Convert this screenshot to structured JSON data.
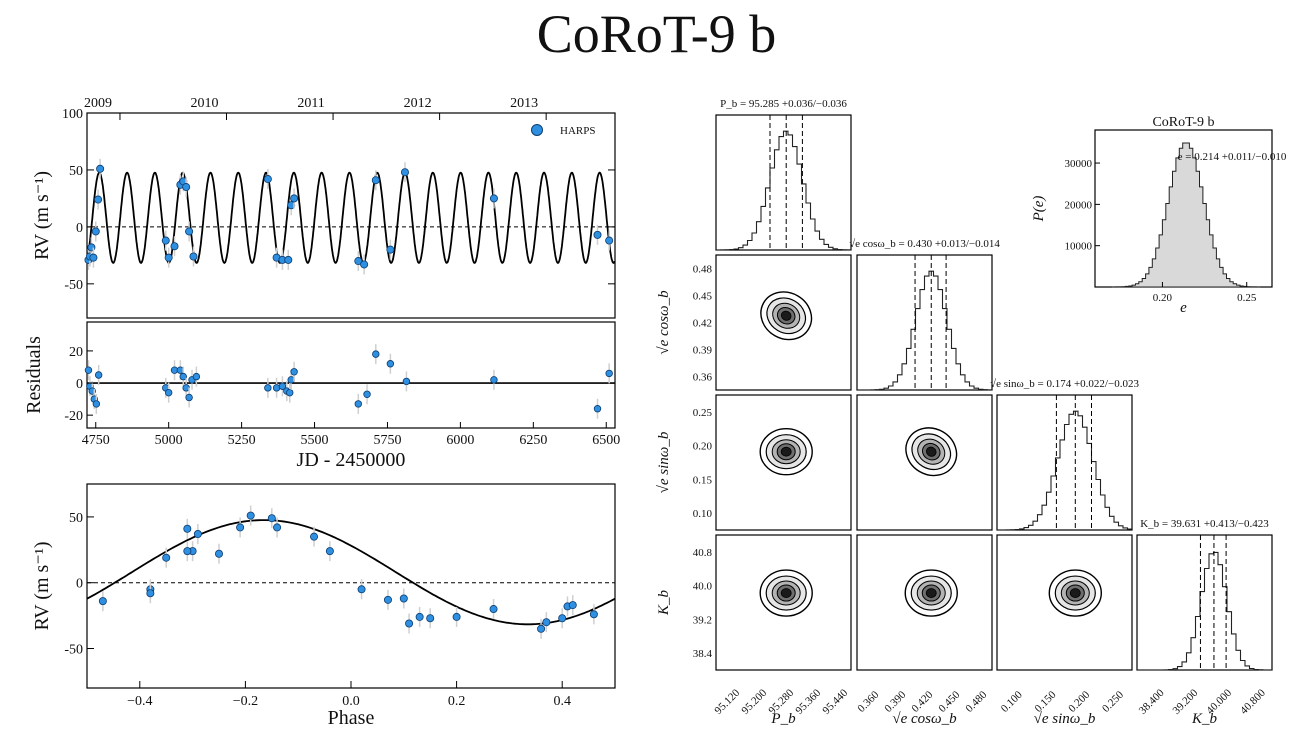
{
  "title": "CoRoT-9 b",
  "colors": {
    "points": "#2f8fe0",
    "model": "#000000",
    "hist_fill": "#d9d9d9"
  },
  "chart_data": [
    {
      "id": "rv_time",
      "type": "scatter",
      "xlabel": "JD - 2450000",
      "ylabel": "RV (m s⁻¹)",
      "ylim": [
        -80,
        100
      ],
      "xlim": [
        4720,
        6530
      ],
      "yticks": [
        "-50",
        "0",
        "50",
        "100"
      ],
      "top_axis_years": [
        "2009",
        "2010",
        "2011",
        "2012",
        "2013"
      ],
      "legend": "HARPS",
      "model": "sinusoid period 95.285, amplitude 39.6",
      "points": [
        [
          4725,
          -29
        ],
        [
          4730,
          -26
        ],
        [
          4735,
          -18
        ],
        [
          4742,
          -27
        ],
        [
          4750,
          -4
        ],
        [
          4758,
          24
        ],
        [
          4765,
          51
        ],
        [
          4990,
          -12
        ],
        [
          5000,
          -27
        ],
        [
          5020,
          -17
        ],
        [
          5040,
          37
        ],
        [
          5050,
          40
        ],
        [
          5060,
          35
        ],
        [
          5070,
          -4
        ],
        [
          5085,
          -26
        ],
        [
          5340,
          42
        ],
        [
          5370,
          -27
        ],
        [
          5390,
          -29
        ],
        [
          5410,
          -29
        ],
        [
          5420,
          19
        ],
        [
          5430,
          25
        ],
        [
          5650,
          -30
        ],
        [
          5670,
          -33
        ],
        [
          5710,
          41
        ],
        [
          5760,
          -20
        ],
        [
          5810,
          48
        ],
        [
          6115,
          25
        ],
        [
          6470,
          -7
        ],
        [
          6510,
          -12
        ]
      ]
    },
    {
      "id": "residuals",
      "type": "scatter",
      "ylabel": "Residuals",
      "ylim": [
        -28,
        38
      ],
      "xlim": [
        4720,
        6530
      ],
      "xticks": [
        "4750",
        "5000",
        "5250",
        "5500",
        "5750",
        "6000",
        "6250",
        "6500"
      ],
      "yticks": [
        "-20",
        "0",
        "20"
      ],
      "points": [
        [
          4725,
          8
        ],
        [
          4730,
          -2
        ],
        [
          4738,
          -5
        ],
        [
          4745,
          -10
        ],
        [
          4752,
          -13
        ],
        [
          4760,
          5
        ],
        [
          4990,
          -3
        ],
        [
          5000,
          -6
        ],
        [
          5020,
          8
        ],
        [
          5040,
          8
        ],
        [
          5050,
          4
        ],
        [
          5060,
          -3
        ],
        [
          5070,
          -9
        ],
        [
          5080,
          2
        ],
        [
          5095,
          4
        ],
        [
          5340,
          -3
        ],
        [
          5370,
          -3
        ],
        [
          5390,
          -2
        ],
        [
          5405,
          -5
        ],
        [
          5415,
          -6
        ],
        [
          5420,
          2
        ],
        [
          5430,
          7
        ],
        [
          5650,
          -13
        ],
        [
          5680,
          -7
        ],
        [
          5710,
          18
        ],
        [
          5760,
          12
        ],
        [
          5815,
          1
        ],
        [
          6115,
          2
        ],
        [
          6470,
          -16
        ],
        [
          6510,
          6
        ]
      ]
    },
    {
      "id": "rv_phase",
      "type": "scatter",
      "xlabel": "Phase",
      "ylabel": "RV (m s⁻¹)",
      "xlim": [
        -0.5,
        0.5
      ],
      "ylim": [
        -80,
        75
      ],
      "xticks": [
        "−0.4",
        "−0.2",
        "0.0",
        "0.2",
        "0.4"
      ],
      "yticks": [
        "-50",
        "0",
        "50"
      ],
      "points": [
        [
          -0.47,
          -14
        ],
        [
          -0.38,
          -5
        ],
        [
          -0.38,
          -8
        ],
        [
          -0.35,
          19
        ],
        [
          -0.31,
          41
        ],
        [
          -0.3,
          24
        ],
        [
          -0.31,
          24
        ],
        [
          -0.29,
          37
        ],
        [
          -0.25,
          22
        ],
        [
          -0.21,
          42
        ],
        [
          -0.19,
          51
        ],
        [
          -0.15,
          49
        ],
        [
          -0.14,
          42
        ],
        [
          -0.07,
          35
        ],
        [
          -0.04,
          24
        ],
        [
          0.02,
          -5
        ],
        [
          0.07,
          -13
        ],
        [
          0.1,
          -12
        ],
        [
          0.11,
          -31
        ],
        [
          0.13,
          -26
        ],
        [
          0.15,
          -27
        ],
        [
          0.2,
          -26
        ],
        [
          0.27,
          -20
        ],
        [
          0.36,
          -35
        ],
        [
          0.37,
          -30
        ],
        [
          0.4,
          -27
        ],
        [
          0.41,
          -18
        ],
        [
          0.42,
          -17
        ],
        [
          0.46,
          -24
        ]
      ]
    },
    {
      "id": "corner",
      "type": "histogram",
      "params": [
        "P_b",
        "√e cos ω_b",
        "√e sin ω_b",
        "K_b"
      ],
      "axis_labels": [
        "P_b",
        "√e cosω_b",
        "√e sinω_b",
        "K_b"
      ],
      "titles": [
        "P_b = 95.285 +0.036/−0.036",
        "√e cosω_b = 0.430 +0.013/−0.014",
        "√e sinω_b = 0.174 +0.022/−0.023",
        "K_b = 39.631 +0.413/−0.423"
      ],
      "xticks": [
        [
          "95.120",
          "95.200",
          "95.280",
          "95.360",
          "95.440"
        ],
        [
          "0.360",
          "0.390",
          "0.420",
          "0.450",
          "0.480"
        ],
        [
          "0.100",
          "0.150",
          "0.200",
          "0.250"
        ],
        [
          "38.400",
          "39.200",
          "40.000",
          "40.800"
        ]
      ],
      "yticks": [
        [],
        [
          "0.48",
          "0.45",
          "0.42",
          "0.39",
          "0.36"
        ],
        [
          "0.25",
          "0.20",
          "0.15",
          "0.10"
        ],
        [
          "40.8",
          "40.0",
          "39.2",
          "38.4"
        ]
      ],
      "quantiles_frac": [
        [
          0.4,
          0.52,
          0.64
        ],
        [
          0.43,
          0.55,
          0.66
        ],
        [
          0.44,
          0.58,
          0.7
        ],
        [
          0.47,
          0.57,
          0.66
        ]
      ]
    },
    {
      "id": "ecc_hist",
      "type": "histogram",
      "title": "CoRoT-9 b",
      "xlabel": "e",
      "ylabel": "P(e)",
      "xticks": [
        "0.20",
        "0.25"
      ],
      "yticks": [
        "10000",
        "20000",
        "30000"
      ],
      "annotation": "e = 0.214 +0.011/−0.010",
      "peak": 35000
    }
  ]
}
